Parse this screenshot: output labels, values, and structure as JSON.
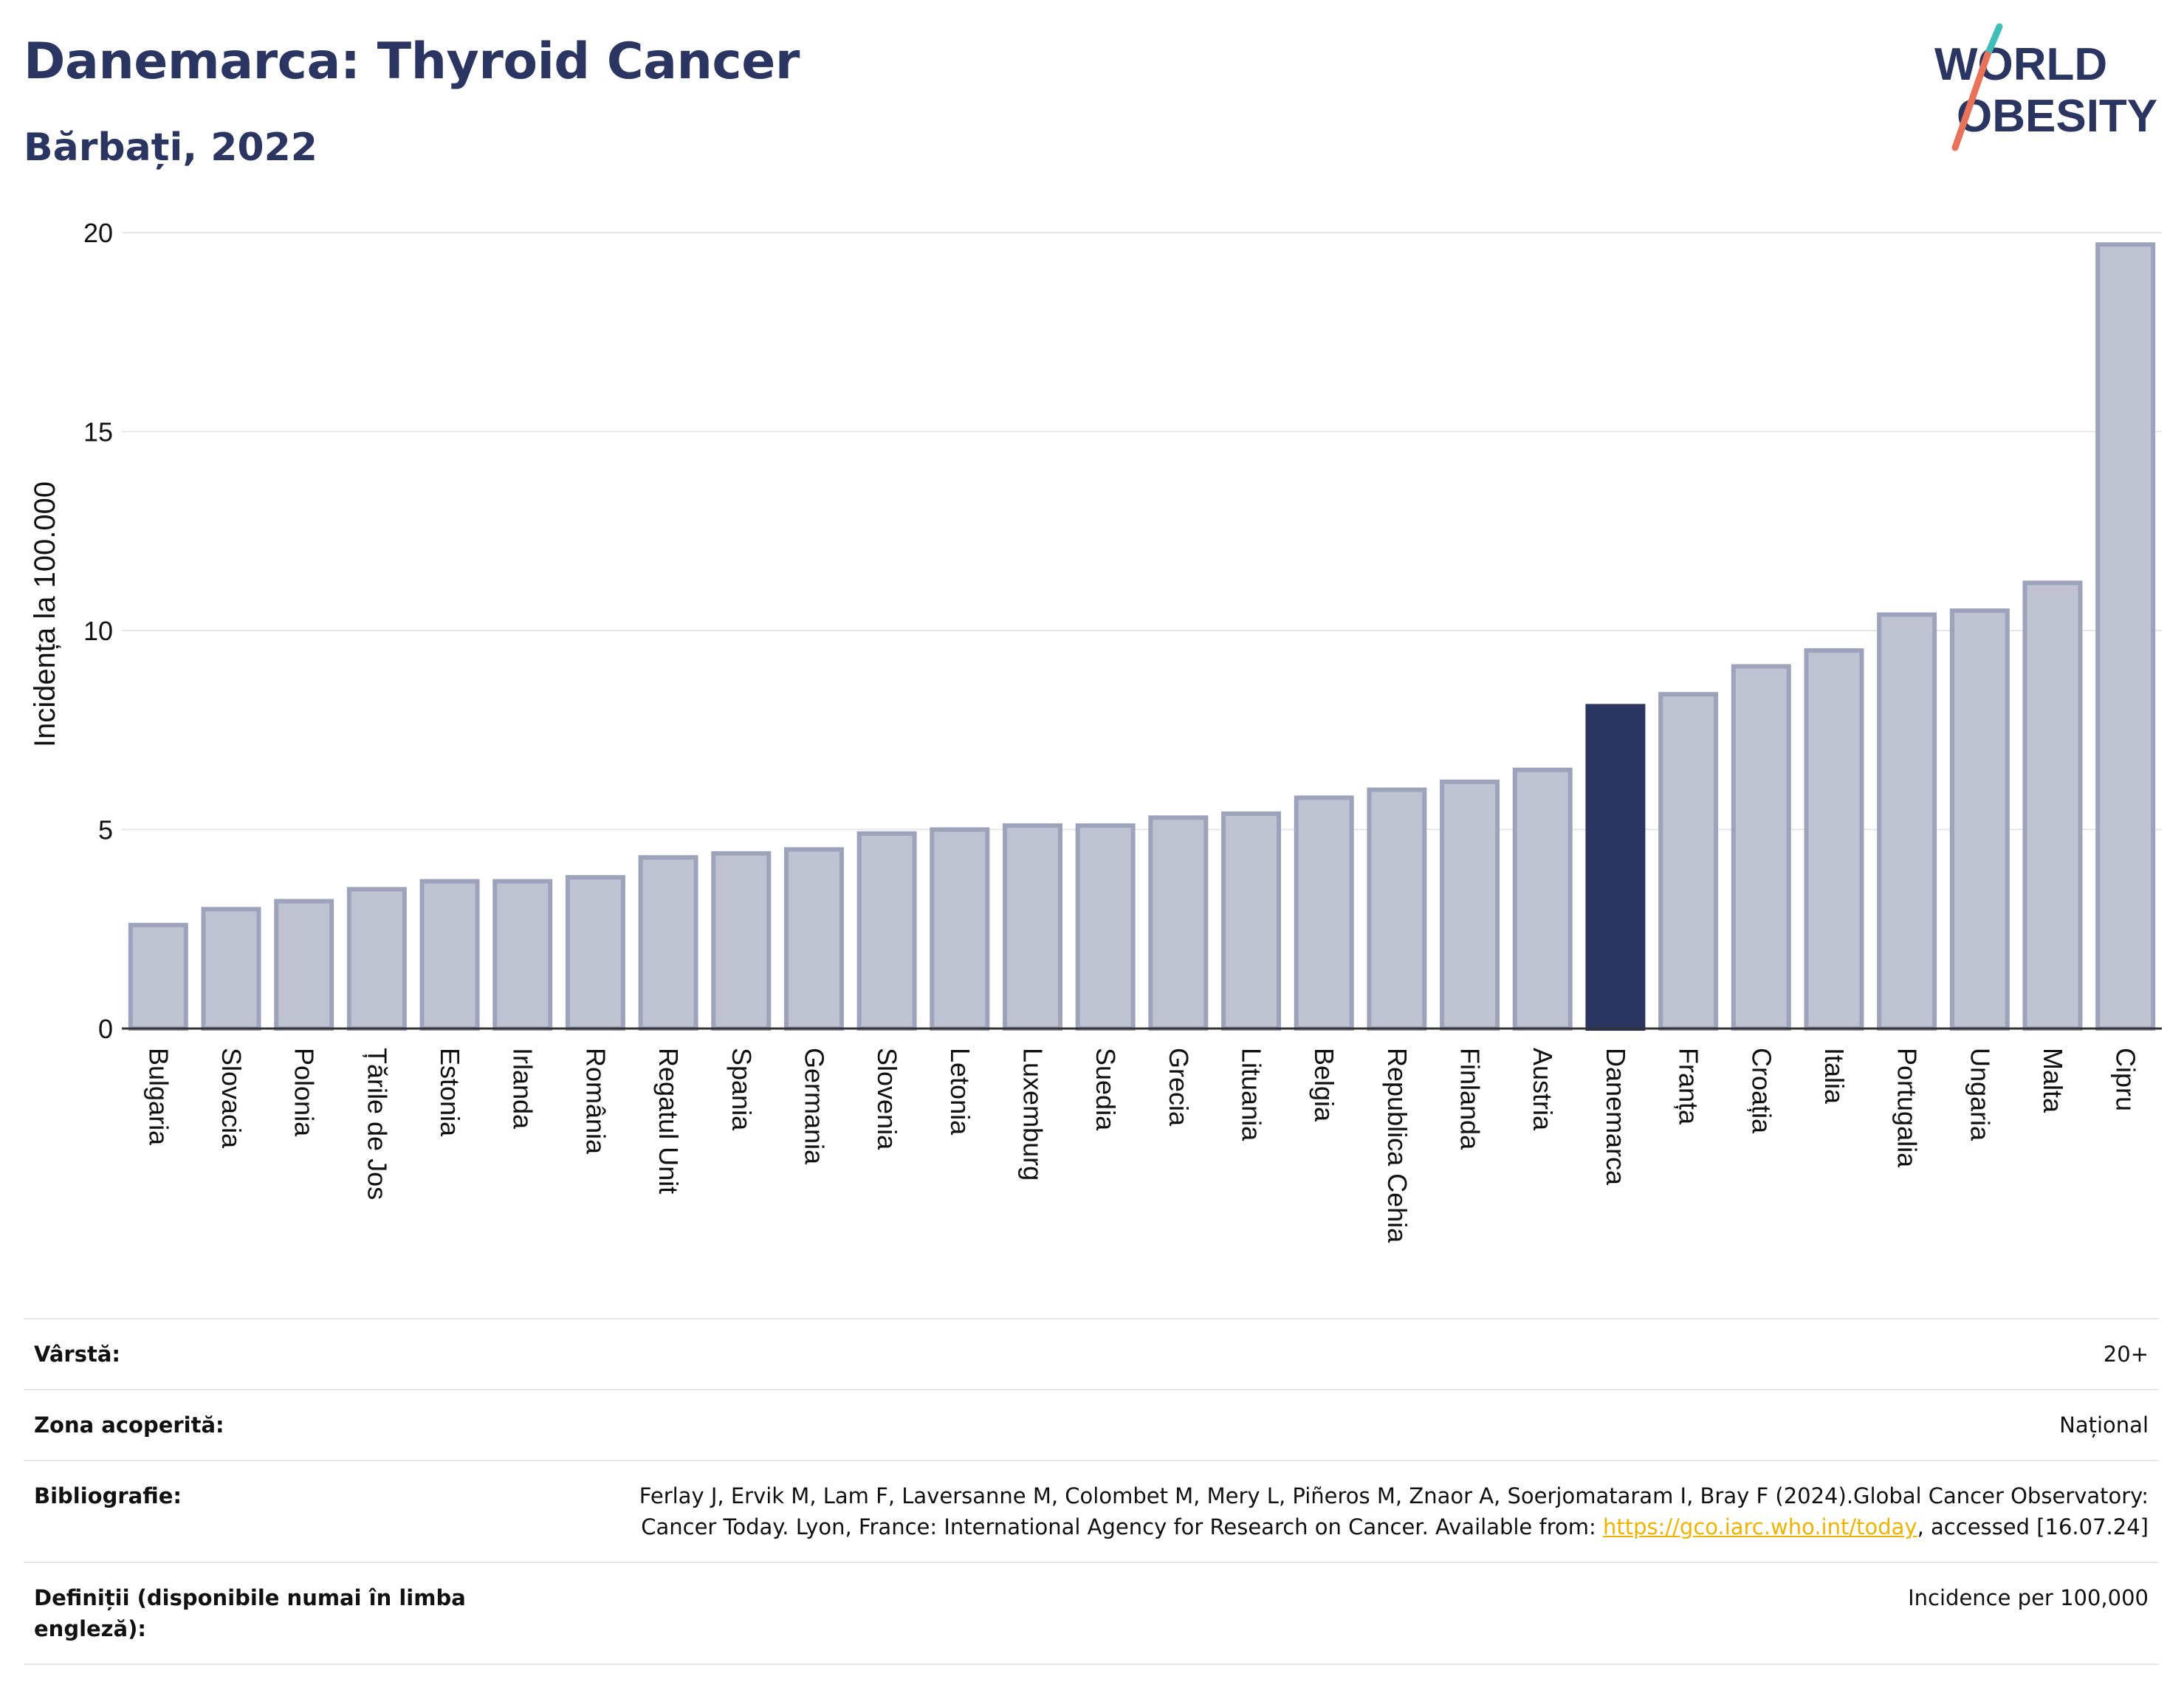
{
  "header": {
    "title": "Danemarca: Thyroid Cancer",
    "subtitle": "Bărbați, 2022",
    "logo_line1": "WORLD",
    "logo_line2": "OBESITY"
  },
  "colors": {
    "navy": "#2a3562",
    "bar_fill": "#bfc2d1",
    "bar_stroke": "#9da3bb",
    "highlight": "#2a3562",
    "logo_teal": "#3fbdb8",
    "logo_coral": "#e8735a"
  },
  "chart_data": {
    "type": "bar",
    "title": "Danemarca: Thyroid Cancer",
    "subtitle": "Bărbați, 2022",
    "xlabel": "",
    "ylabel": "Incidența la 100.000",
    "ylim": [
      0,
      20
    ],
    "yticks": [
      0,
      5,
      10,
      15,
      20
    ],
    "grid": true,
    "legend": "none",
    "highlight_category": "Danemarca",
    "categories": [
      "Bulgaria",
      "Slovacia",
      "Polonia",
      "Țările de Jos",
      "Estonia",
      "Irlanda",
      "România",
      "Regatul Unit",
      "Spania",
      "Germania",
      "Slovenia",
      "Letonia",
      "Luxemburg",
      "Suedia",
      "Grecia",
      "Lituania",
      "Belgia",
      "Republica Cehia",
      "Finlanda",
      "Austria",
      "Danemarca",
      "Franța",
      "Croația",
      "Italia",
      "Portugalia",
      "Ungaria",
      "Malta",
      "Cipru"
    ],
    "values": [
      2.6,
      3.0,
      3.2,
      3.5,
      3.7,
      3.7,
      3.8,
      4.3,
      4.4,
      4.5,
      4.9,
      5.0,
      5.1,
      5.1,
      5.3,
      5.4,
      5.8,
      6.0,
      6.2,
      6.5,
      8.1,
      8.4,
      9.1,
      9.5,
      10.4,
      10.5,
      11.2,
      19.7
    ]
  },
  "meta": {
    "rows": [
      {
        "label": "Vârstă:",
        "value": "20+"
      },
      {
        "label": "Zona acoperită:",
        "value": "Național"
      },
      {
        "label": "Bibliografie:",
        "value_pre": "Ferlay J, Ervik M, Lam F, Laversanne M, Colombet M, Mery L, Piñeros M, Znaor A, Soerjomataram I, Bray F (2024).Global Cancer Observatory: Cancer Today. Lyon, France: International Agency for Research on Cancer. Available from: ",
        "link": "https://gco.iarc.who.int/today",
        "value_post": ", accessed [16.07.24]"
      },
      {
        "label": "Definiții (disponibile numai în limba engleză):",
        "value": "Incidence per 100,000"
      }
    ]
  }
}
